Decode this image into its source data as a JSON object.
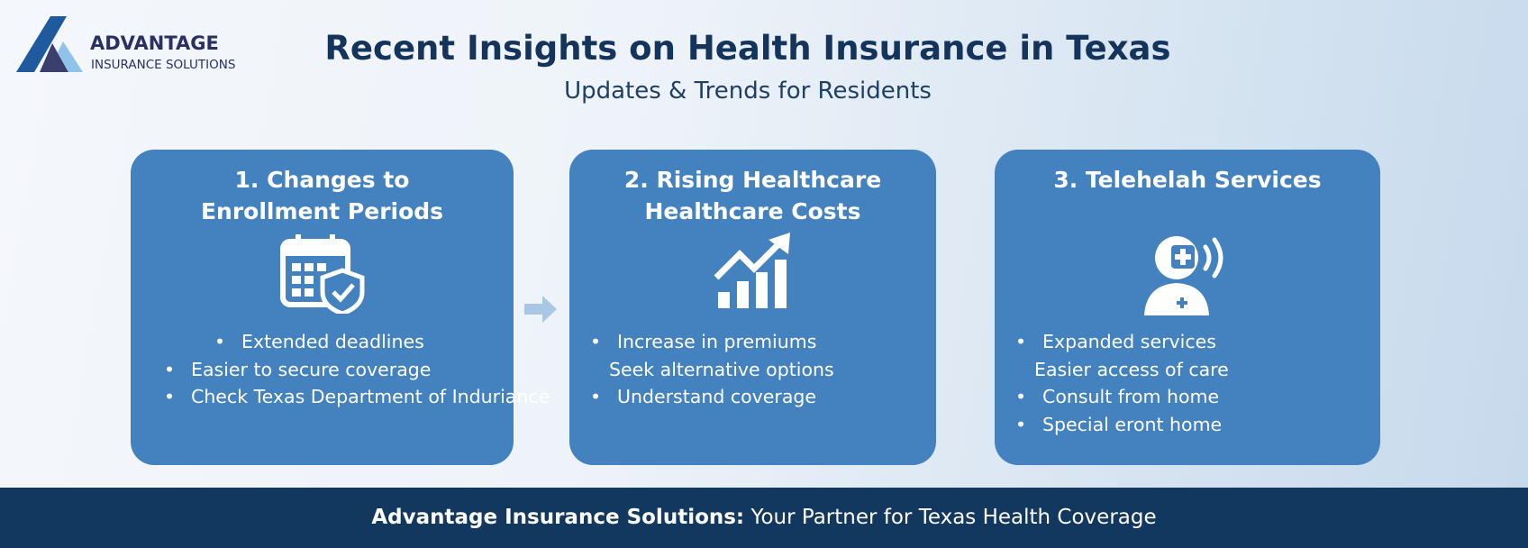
{
  "logo": {
    "name": "ADVANTAGE",
    "tagline": "INSURANCE SOLUTIONS"
  },
  "header": {
    "title": "Recent Insights on Health Insurance in Texas",
    "subtitle": "Updates & Trends for Residents"
  },
  "cards": [
    {
      "title_lines": [
        "1. Changes to",
        "Enrollment Periods"
      ],
      "items": [
        {
          "text": "Extended deadlines",
          "bullet": true
        },
        {
          "text": "Easier to secure coverage",
          "bullet": true
        },
        {
          "text": "Check Texas Department of Induriance",
          "bullet": true
        }
      ]
    },
    {
      "title_lines": [
        "2. Rising Healthcare",
        "Healthcare Costs"
      ],
      "items": [
        {
          "text": "Increase in premiums",
          "bullet": true
        },
        {
          "text": "Seek alternative options",
          "bullet": false
        },
        {
          "text": "Understand coverage",
          "bullet": true
        }
      ]
    },
    {
      "title_lines": [
        "3. Telehelah Services"
      ],
      "items": [
        {
          "text": "Expanded services",
          "bullet": true
        },
        {
          "text": "Easier access of care",
          "bullet": false
        },
        {
          "text": "Consult from home",
          "bullet": true
        },
        {
          "text": "Special eront home",
          "bullet": true
        }
      ]
    }
  ],
  "footer": {
    "brand": "Advantage Insurance Solutions:",
    "tagline": "Your Partner for Texas Health Coverage"
  }
}
